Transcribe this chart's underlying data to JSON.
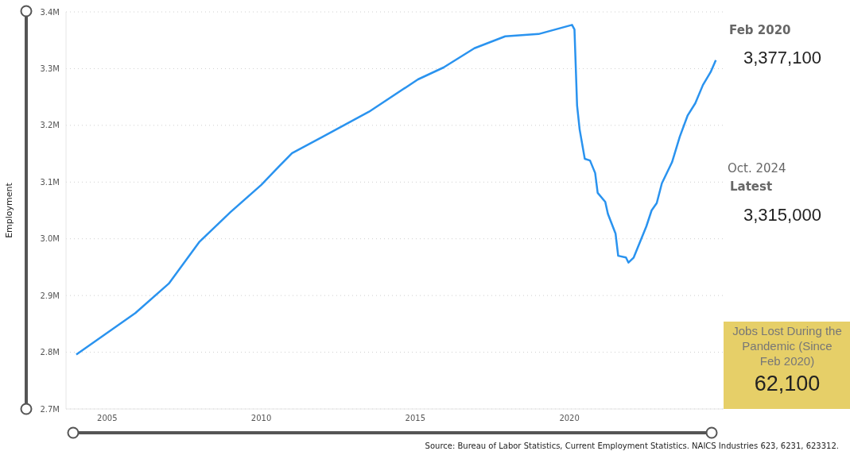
{
  "chart_data": {
    "type": "line",
    "ylabel": "Employment",
    "x": [
      "2004-01",
      "2005-12",
      "2007-01",
      "2008-01",
      "2009-01",
      "2010-01",
      "2010-08",
      "2011-01",
      "2012-01",
      "2013-07",
      "2015-02",
      "2015-12",
      "2016-12",
      "2017-12",
      "2019-01",
      "2020-02",
      "2020-03",
      "2020-04",
      "2020-05",
      "2020-07",
      "2020-09",
      "2020-11",
      "2020-12",
      "2021-03",
      "2021-04",
      "2021-07",
      "2021-08",
      "2021-11",
      "2021-12",
      "2022-02",
      "2022-07",
      "2022-09",
      "2022-11",
      "2023-01",
      "2023-05",
      "2023-08",
      "2023-11",
      "2024-02",
      "2024-05",
      "2024-08",
      "2024-10"
    ],
    "series": [
      {
        "color": "#2a93ef",
        "values": [
          2796000,
          2869000,
          2921000,
          2995000,
          3047000,
          3095000,
          3128000,
          3151000,
          3180000,
          3224000,
          3281000,
          3302000,
          3336000,
          3357000,
          3361000,
          3377100,
          3369000,
          3235000,
          3193000,
          3141000,
          3138000,
          3116000,
          3081000,
          3065000,
          3044000,
          3009000,
          2970000,
          2967000,
          2958000,
          2967000,
          3022000,
          3050000,
          3063000,
          3098000,
          3135000,
          3180000,
          3217000,
          3239000,
          3271000,
          3294000,
          3315000
        ]
      }
    ],
    "xlim": [
      "2003-09",
      "2025-01"
    ],
    "xticks": [
      "2005",
      "2010",
      "2015",
      "2020"
    ],
    "ylim": [
      2700000,
      3400000
    ],
    "yticks": [
      {
        "value": 2700000,
        "label": "2.7M"
      },
      {
        "value": 2800000,
        "label": "2.8M"
      },
      {
        "value": 2900000,
        "label": "2.9M"
      },
      {
        "value": 3000000,
        "label": "3.0M"
      },
      {
        "value": 3100000,
        "label": "3.1M"
      },
      {
        "value": 3200000,
        "label": "3.2M"
      },
      {
        "value": 3300000,
        "label": "3.3M"
      },
      {
        "value": 3400000,
        "label": "3.4M"
      }
    ],
    "grid": "y",
    "annotations": [
      "Feb 2020",
      "3,377,100",
      "Oct. 2024",
      "Latest",
      "3,315,000",
      "Jobs Lost During the Pandemic (Since Feb 2020)",
      "62,100",
      "Source: Bureau of Labor Statistics, Current Employment Statistics. NAICS Industries 623, 6231, 623312."
    ]
  }
}
